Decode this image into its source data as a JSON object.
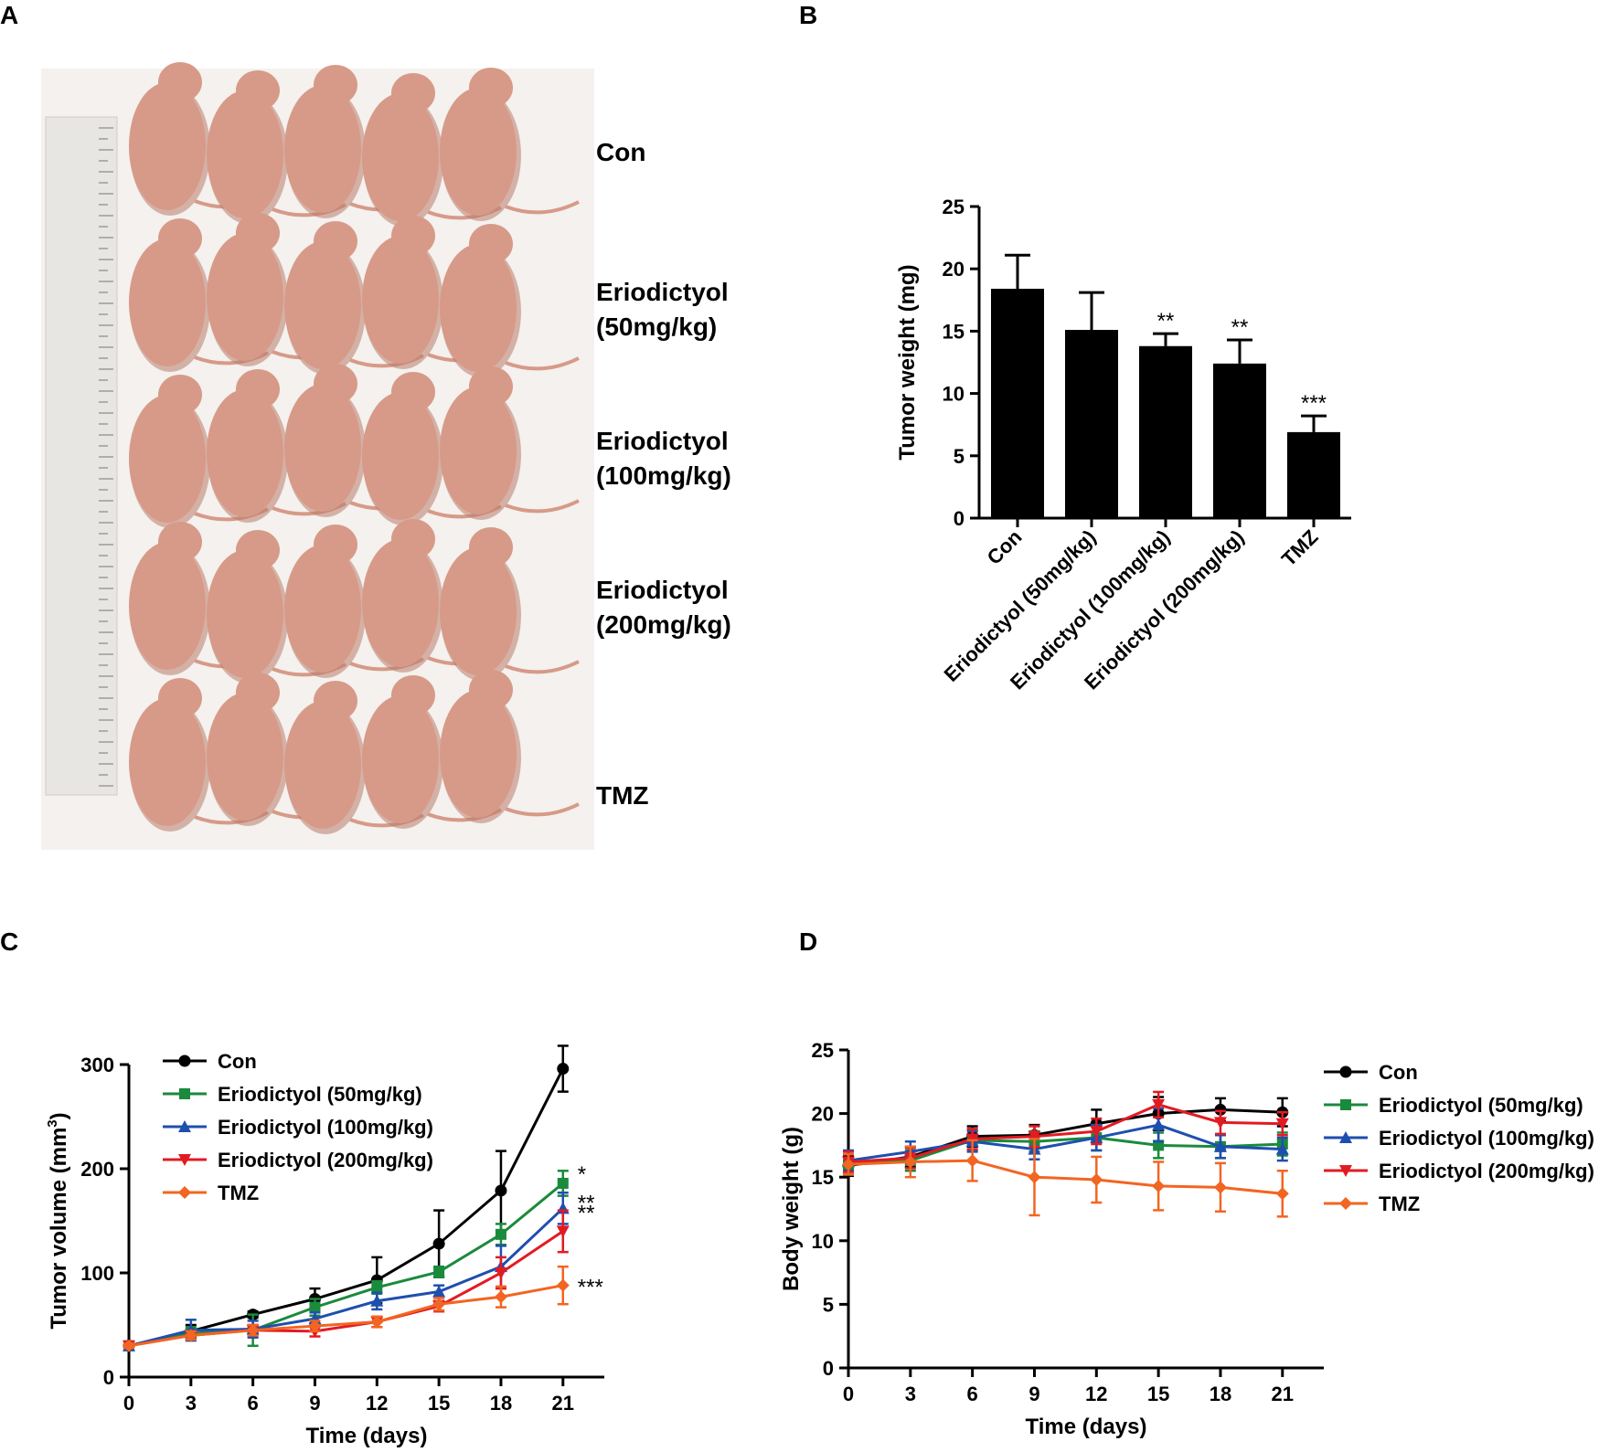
{
  "panel_letters": {
    "a": "A",
    "b": "B",
    "c": "C",
    "d": "D"
  },
  "panel_a": {
    "image_description_hidden": false,
    "group_labels": [
      {
        "line1": "Con",
        "line2": ""
      },
      {
        "line1": "Eriodictyol",
        "line2": "(50mg/kg)"
      },
      {
        "line1": "Eriodictyol",
        "line2": "(100mg/kg)"
      },
      {
        "line1": "Eriodictyol",
        "line2": "(200mg/kg)"
      },
      {
        "line1": "TMZ",
        "line2": ""
      }
    ]
  },
  "colors": {
    "con": "#000000",
    "e50": "#1a8a3c",
    "e100": "#1f4fae",
    "e200": "#e21b23",
    "tmz": "#f26522",
    "mouse_body": "#d79a88",
    "mouse_shadow": "#b97c6c",
    "photo_bg": "#f4f1ee",
    "ruler": "#e8e6e2"
  },
  "chart_data": [
    {
      "id": "B",
      "type": "bar",
      "ylabel": "Tumor weight (mg)",
      "ylim": [
        0,
        25
      ],
      "yticks": [
        0,
        5,
        10,
        15,
        20,
        25
      ],
      "categories": [
        "Con",
        "Eriodictyol (50mg/kg)",
        "Eriodictyol (100mg/kg)",
        "Eriodictyol (200mg/kg)",
        "TMZ"
      ],
      "values": [
        18.4,
        15.1,
        13.8,
        12.4,
        6.9
      ],
      "errors": [
        2.7,
        3.0,
        1.0,
        1.9,
        1.3
      ],
      "significance": [
        "",
        "",
        "**",
        "**",
        "***"
      ]
    },
    {
      "id": "C",
      "type": "line",
      "xlabel": "Time (days)",
      "ylabel": "Tumor volume (mm³)",
      "x": [
        0,
        3,
        6,
        9,
        12,
        15,
        18,
        21
      ],
      "xlim": [
        0,
        23
      ],
      "ylim": [
        0,
        300
      ],
      "yticks": [
        0,
        100,
        200,
        300
      ],
      "series": [
        {
          "name": "Con",
          "color_key": "con",
          "marker": "circle",
          "values": [
            30,
            44,
            60,
            75,
            93,
            128,
            179,
            296
          ],
          "errors": [
            2,
            6,
            3,
            10,
            22,
            32,
            38,
            22
          ],
          "significance": ""
        },
        {
          "name": "Eriodictyol (50mg/kg)",
          "color_key": "e50",
          "marker": "square",
          "values": [
            30,
            42,
            45,
            67,
            86,
            101,
            137,
            186
          ],
          "errors": [
            2,
            6,
            15,
            8,
            6,
            5,
            10,
            12
          ],
          "significance": "*"
        },
        {
          "name": "Eriodictyol (100mg/kg)",
          "color_key": "e100",
          "marker": "triangle-up",
          "values": [
            30,
            45,
            46,
            56,
            73,
            82,
            106,
            162
          ],
          "errors": [
            2,
            10,
            8,
            6,
            8,
            6,
            20,
            15
          ],
          "significance": "**"
        },
        {
          "name": "Eriodictyol (200mg/kg)",
          "color_key": "e200",
          "marker": "triangle-down",
          "values": [
            30,
            40,
            45,
            44,
            53,
            68,
            100,
            140
          ],
          "errors": [
            2,
            4,
            5,
            5,
            5,
            5,
            15,
            20
          ],
          "significance": "**"
        },
        {
          "name": "TMZ",
          "color_key": "tmz",
          "marker": "diamond",
          "values": [
            30,
            40,
            45,
            49,
            53,
            70,
            77,
            88
          ],
          "errors": [
            2,
            4,
            5,
            5,
            5,
            6,
            10,
            18
          ],
          "significance": "***"
        }
      ]
    },
    {
      "id": "D",
      "type": "line",
      "xlabel": "Time (days)",
      "ylabel": "Body weight (g)",
      "x": [
        0,
        3,
        6,
        9,
        12,
        15,
        18,
        21
      ],
      "xlim": [
        0,
        23
      ],
      "ylim": [
        0,
        25
      ],
      "yticks": [
        0,
        5,
        10,
        15,
        20,
        25
      ],
      "series": [
        {
          "name": "Con",
          "color_key": "con",
          "marker": "circle",
          "values": [
            15.9,
            16.6,
            18.2,
            18.3,
            19.2,
            20.0,
            20.3,
            20.1
          ],
          "errors": [
            0.8,
            0.8,
            0.8,
            0.8,
            1.1,
            1.3,
            0.9,
            1.1
          ]
        },
        {
          "name": "Eriodictyol (50mg/kg)",
          "color_key": "e50",
          "marker": "square",
          "values": [
            16.0,
            16.3,
            17.9,
            17.8,
            18.1,
            17.5,
            17.4,
            17.6
          ],
          "errors": [
            0.8,
            0.8,
            0.8,
            0.8,
            1.0,
            1.0,
            0.9,
            0.9
          ]
        },
        {
          "name": "Eriodictyol (100mg/kg)",
          "color_key": "e100",
          "marker": "triangle-up",
          "values": [
            16.3,
            17.0,
            17.8,
            17.2,
            18.1,
            19.1,
            17.4,
            17.2
          ],
          "errors": [
            0.8,
            0.8,
            0.8,
            0.8,
            1.0,
            1.3,
            0.9,
            0.9
          ]
        },
        {
          "name": "Eriodictyol (200mg/kg)",
          "color_key": "e200",
          "marker": "triangle-down",
          "values": [
            16.2,
            16.5,
            18.0,
            18.2,
            18.6,
            20.7,
            19.3,
            19.2
          ],
          "errors": [
            0.8,
            0.8,
            0.8,
            0.8,
            1.0,
            1.0,
            0.9,
            0.9
          ]
        },
        {
          "name": "TMZ",
          "color_key": "tmz",
          "marker": "diamond",
          "values": [
            16.0,
            16.2,
            16.3,
            15.0,
            14.8,
            14.3,
            14.2,
            13.7
          ],
          "errors": [
            0.8,
            1.2,
            1.6,
            3.0,
            1.8,
            1.9,
            1.9,
            1.8
          ]
        }
      ]
    }
  ]
}
